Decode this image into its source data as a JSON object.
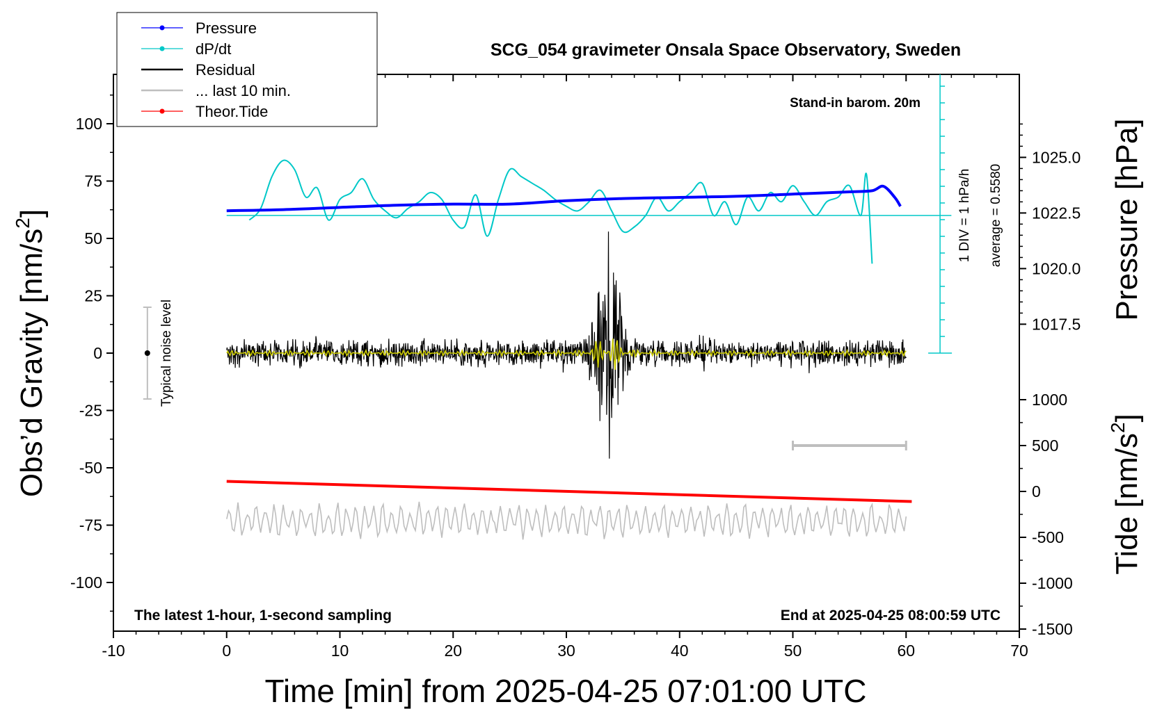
{
  "chart_data": {
    "type": "line",
    "title": "SCG_054 gravimeter Onsala Space Observatory, Sweden",
    "xlabel": "Time [min] from 2025-04-25 07:01:00 UTC",
    "xlim": [
      -10,
      70
    ],
    "xticks": [
      "-10",
      "0",
      "10",
      "20",
      "30",
      "40",
      "50",
      "60",
      "70"
    ],
    "ylabel_main": "Obs’d Gravity [nm/s",
    "ylabel_main_sup": "2",
    "ylabel_main_close": "]",
    "ylim": [
      -120,
      120
    ],
    "yticks": [
      "100",
      "75",
      "50",
      "25",
      "0",
      "-25",
      "-50",
      "-75",
      "-100"
    ],
    "ylabel_pressure": "Pressure [hPa]",
    "pressure_ticks": [
      "1025.0",
      "1022.5",
      "1020.0",
      "1017.5"
    ],
    "ylabel_tide": "Tide [nm/s",
    "ylabel_tide_sup": "2",
    "ylabel_tide_close": "]",
    "tide_ticks": [
      "1000",
      "500",
      "0",
      "-500",
      "-1000",
      "-1500"
    ],
    "legend": {
      "position": "top-left",
      "entries": [
        {
          "label": "Pressure",
          "color": "#0000ff",
          "marker": true
        },
        {
          "label": "dP/dt",
          "color": "#00c8c8",
          "marker": true
        },
        {
          "label": "Residual",
          "color": "#000000",
          "marker": false
        },
        {
          "label": "... last 10 min.",
          "color": "#bebebe",
          "marker": false
        },
        {
          "label": "Theor.Tide",
          "color": "#ff0000",
          "marker": true
        }
      ]
    },
    "annotations": {
      "barometer": "Stand-in barom. 20m",
      "latest": "The latest 1-hour, 1-second sampling",
      "end": "End at 2025-04-25 08:00:59 UTC",
      "div": "1 DIV = 1 hPa/h",
      "average": "average = 0.5580",
      "noise": "Typical noise level"
    },
    "noise_level_range": [
      -20,
      20
    ],
    "last10_bar_minutes": [
      50,
      60
    ],
    "series": [
      {
        "name": "Pressure",
        "color": "#0000ff",
        "x": [
          0,
          5,
          10,
          15,
          20,
          25,
          30,
          35,
          40,
          45,
          50,
          55,
          57,
          58,
          59,
          59.5
        ],
        "y_hpa": [
          1022.6,
          1022.65,
          1022.75,
          1022.85,
          1022.9,
          1022.9,
          1023.05,
          1023.15,
          1023.2,
          1023.25,
          1023.35,
          1023.45,
          1023.5,
          1023.7,
          1023.2,
          1022.8
        ]
      },
      {
        "name": "dP/dt",
        "color": "#00c8c8",
        "baseline": 60,
        "x": [
          2,
          3,
          4,
          5,
          6,
          7,
          8,
          9,
          10,
          11,
          12,
          13,
          14,
          15,
          16,
          17,
          18,
          19,
          20,
          21,
          22,
          23,
          24,
          25,
          26,
          27,
          28,
          29,
          30,
          31,
          32,
          33,
          34,
          35,
          36,
          37,
          38,
          39,
          40,
          41,
          42,
          43,
          44,
          45,
          46,
          47,
          48,
          49,
          50,
          51,
          52,
          53,
          54,
          55,
          56,
          56.5,
          57
        ],
        "y": [
          58,
          63,
          77,
          84,
          80,
          68,
          72,
          58,
          67,
          70,
          76,
          67,
          62,
          59,
          63,
          66,
          70,
          67,
          58,
          55,
          69,
          51,
          67,
          80,
          77,
          74,
          71,
          67,
          64,
          62,
          66,
          71,
          62,
          53,
          55,
          60,
          68,
          62,
          66,
          70,
          74,
          60,
          66,
          56,
          68,
          62,
          70,
          66,
          73,
          66,
          60,
          66,
          68,
          73,
          60,
          78,
          39
        ]
      },
      {
        "name": "Residual",
        "color": "#000000",
        "x_range": [
          0,
          60
        ],
        "typical_amplitude": 5,
        "event_peak_minute": 33.7,
        "event_max": 53,
        "event_min": -46
      },
      {
        "name": "... last 10 min.",
        "color": "#bebebe",
        "x_range": [
          0,
          60
        ],
        "offset": -73,
        "amplitude": 7
      },
      {
        "name": "Theor.Tide",
        "color": "#ff0000",
        "x": [
          0,
          60.5
        ],
        "y_tide": [
          110,
          -110
        ]
      }
    ]
  }
}
